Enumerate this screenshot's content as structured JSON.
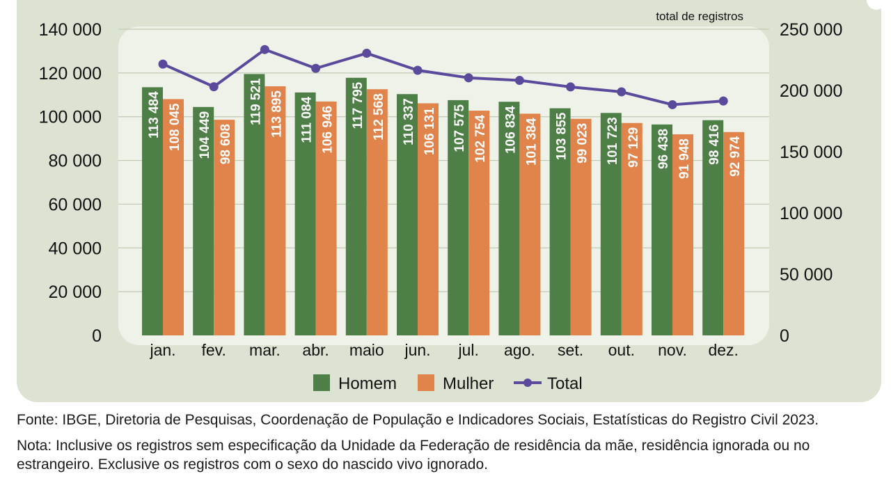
{
  "chart_data": {
    "type": "bar",
    "categories": [
      "jan.",
      "fev.",
      "mar.",
      "abr.",
      "maio",
      "jun.",
      "jul.",
      "ago.",
      "set.",
      "out.",
      "nov.",
      "dez."
    ],
    "series": [
      {
        "name": "Homem",
        "type": "bar",
        "axis": "left",
        "color": "#4e7f47",
        "values": [
          113484,
          104449,
          119521,
          111084,
          117795,
          110337,
          107575,
          106834,
          103855,
          101723,
          96438,
          98416
        ],
        "labels": [
          "113 484",
          "104 449",
          "119 521",
          "111 084",
          "117 795",
          "110 337",
          "107 575",
          "106 834",
          "103 855",
          "101 723",
          "96 438",
          "98 416"
        ]
      },
      {
        "name": "Mulher",
        "type": "bar",
        "axis": "left",
        "color": "#e0844c",
        "values": [
          108045,
          98608,
          113895,
          106946,
          112568,
          106131,
          102754,
          101384,
          99023,
          97129,
          91948,
          92974
        ],
        "labels": [
          "108 045",
          "98 608",
          "113 895",
          "106 946",
          "112 568",
          "106 131",
          "102 754",
          "101 384",
          "99 023",
          "97 129",
          "91 948",
          "92 974"
        ]
      },
      {
        "name": "Total",
        "type": "line",
        "axis": "right",
        "color": "#5b4a9c",
        "values": [
          221529,
          203057,
          233416,
          218030,
          230363,
          216468,
          210329,
          208218,
          202878,
          198852,
          188386,
          191390
        ]
      }
    ],
    "yaxis_left": {
      "min": 0,
      "max": 140000,
      "ticks": [
        0,
        20000,
        40000,
        60000,
        80000,
        100000,
        120000,
        140000
      ],
      "tick_labels": [
        "0",
        "20 000",
        "40 000",
        "60 000",
        "80 000",
        "100 000",
        "120 000",
        "140 000"
      ]
    },
    "yaxis_right": {
      "min": 0,
      "max": 250000,
      "label": "total de registros",
      "ticks": [
        0,
        50000,
        100000,
        150000,
        200000,
        250000
      ],
      "tick_labels": [
        "0",
        "50 000",
        "100 000",
        "150 000",
        "200 000",
        "250 000"
      ]
    },
    "grid": true,
    "legend": {
      "position": "bottom",
      "items": [
        "Homem",
        "Mulher",
        "Total"
      ]
    }
  },
  "notes": {
    "source": "Fonte: IBGE, Diretoria de Pesquisas, Coordenação de População e Indicadores Sociais, Estatísticas do Registro Civil 2023.",
    "note": "Nota: Inclusive os registros sem especificação da Unidade da Federação de residência da mãe, residência ignorada ou no estrangeiro. Exclusive os registros com o sexo do nascido vivo ignorado."
  },
  "colors": {
    "panel": "#dde3d3",
    "plot": "#eef2e9",
    "grid": "#bfcab2"
  }
}
